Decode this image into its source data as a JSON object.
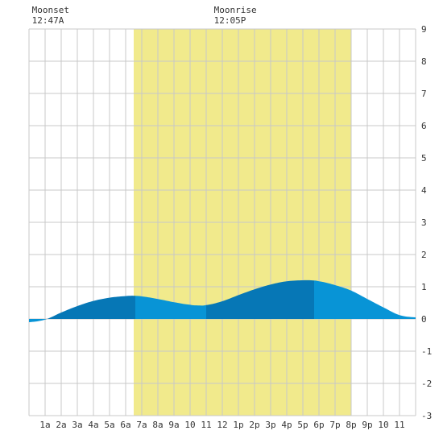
{
  "chart_data": {
    "type": "area",
    "title": "",
    "xlabel": "",
    "ylabel": "",
    "xlim": [
      0,
      24
    ],
    "ylim": [
      -3,
      9
    ],
    "grid": true,
    "x_tick_labels": [
      "1a",
      "2a",
      "3a",
      "4a",
      "5a",
      "6a",
      "7a",
      "8a",
      "9a",
      "10",
      "11",
      "12",
      "1p",
      "2p",
      "3p",
      "4p",
      "5p",
      "6p",
      "7p",
      "8p",
      "9p",
      "10",
      "11"
    ],
    "y_tick_labels": [
      "-3",
      "-2",
      "-1",
      "0",
      "1",
      "2",
      "3",
      "4",
      "5",
      "6",
      "7",
      "8",
      "9"
    ],
    "daylight_span": [
      6.5,
      20.0
    ],
    "annotations": [
      {
        "label": "Moonset",
        "time": "12:47A",
        "x": 0.78
      },
      {
        "label": "Moonrise",
        "time": "12:05P",
        "x": 12.08
      }
    ],
    "tide_series": {
      "name": "",
      "x": [
        0,
        1,
        2,
        3,
        4,
        5,
        6,
        6.5,
        7,
        8,
        9,
        10,
        10.5,
        11,
        12,
        13,
        14,
        15,
        16,
        17,
        17.5,
        18,
        19,
        20,
        21,
        22,
        23,
        24
      ],
      "y": [
        -0.1,
        -0.02,
        0.2,
        0.4,
        0.56,
        0.66,
        0.71,
        0.72,
        0.7,
        0.62,
        0.52,
        0.44,
        0.42,
        0.43,
        0.55,
        0.74,
        0.92,
        1.07,
        1.17,
        1.2,
        1.2,
        1.17,
        1.05,
        0.88,
        0.62,
        0.36,
        0.12,
        0.05
      ]
    },
    "band_boundaries": [
      1.0,
      6.6,
      11.0,
      17.7
    ],
    "colors": {
      "background": "#ffffff",
      "daylight": "#f1ea8c",
      "grid": "#c8c8c8",
      "tide_light": "#0894d6",
      "tide_dark": "#0677b6"
    }
  }
}
